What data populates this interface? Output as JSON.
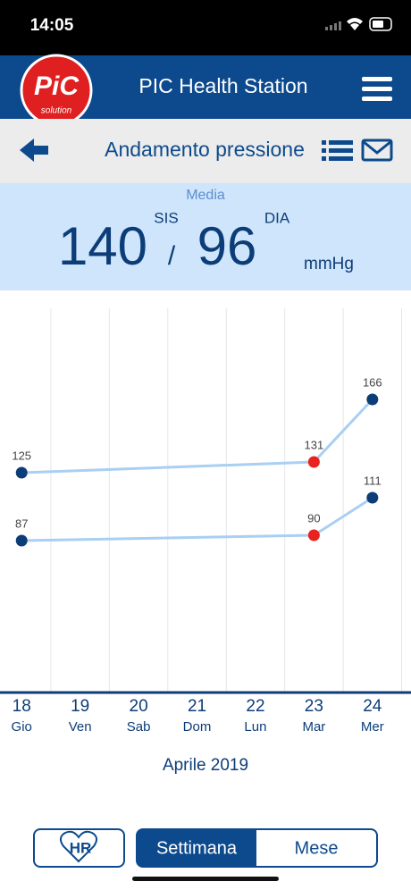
{
  "status_bar": {
    "time": "14:05"
  },
  "header": {
    "logo_top": "PiC",
    "logo_bottom": "solution",
    "title": "PIC Health Station"
  },
  "toolbar": {
    "title": "Andamento pressione"
  },
  "summary": {
    "label": "Media",
    "sis_label": "SIS",
    "sis": "140",
    "separator": "/",
    "dia": "96",
    "dia_label": "DIA",
    "unit": "mmHg"
  },
  "chart_data": {
    "type": "line",
    "x": [
      18,
      23,
      24
    ],
    "series": [
      {
        "color": "#a9cff3",
        "values": [
          125,
          131,
          166
        ],
        "point_colors": [
          "#0d3d78",
          "#e8231f",
          "#0d3d78"
        ]
      },
      {
        "color": "#a9cff3",
        "values": [
          87,
          90,
          111
        ],
        "point_colors": [
          "#0d3d78",
          "#e8231f",
          "#0d3d78"
        ]
      }
    ],
    "xlim": [
      17.63,
      24.66
    ],
    "ylim": [
      2,
      217
    ],
    "xticks": [
      18,
      19,
      20,
      21,
      22,
      23,
      24
    ],
    "xtick_sublabels": [
      "Gio",
      "Ven",
      "Sab",
      "Dom",
      "Lun",
      "Mar",
      "Mer"
    ],
    "period": "Aprile 2019"
  },
  "footer": {
    "hr_button": "HR",
    "week_button": "Settimana",
    "month_button": "Mese"
  }
}
